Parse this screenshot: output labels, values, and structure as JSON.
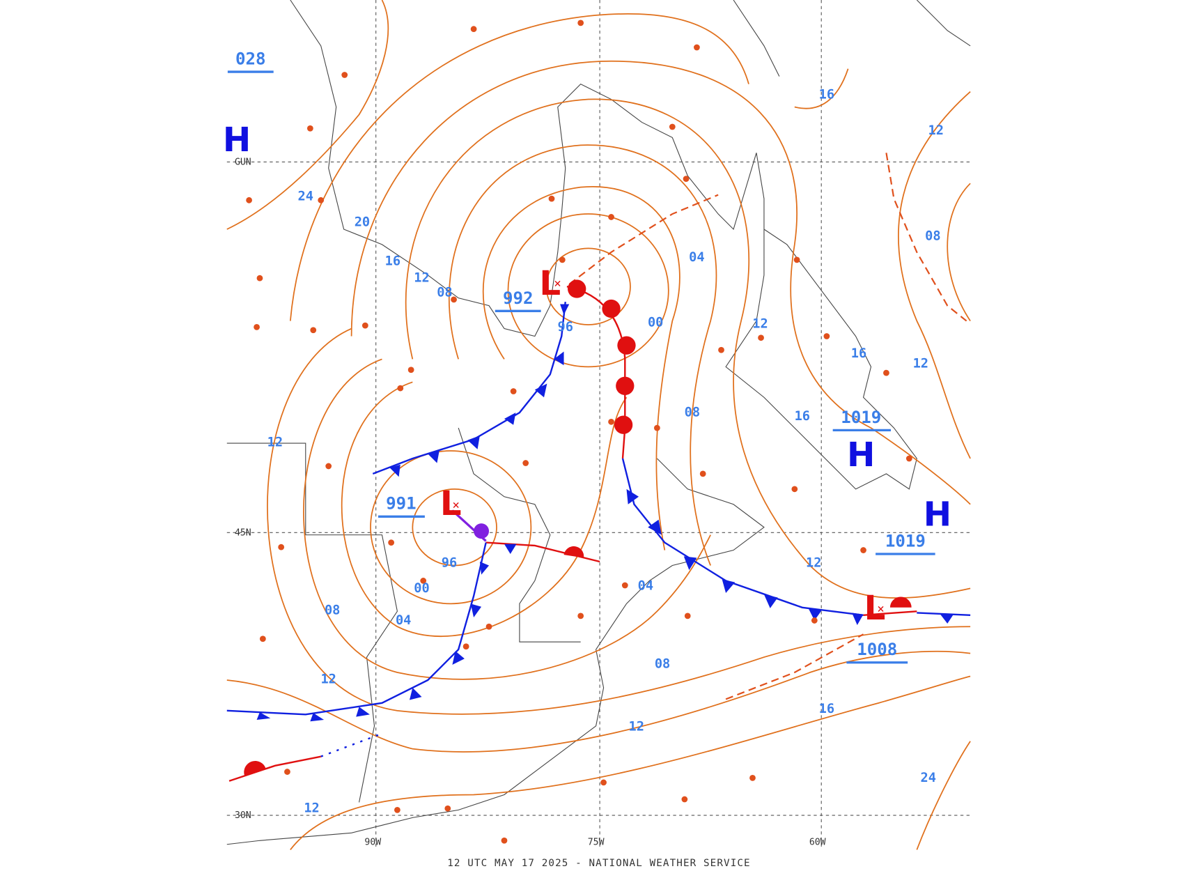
{
  "footer": "12 UTC MAY 17 2025 - NATIONAL WEATHER SERVICE",
  "pressure_centers": [
    {
      "symbol": "H"
    },
    {
      "symbol": "L",
      "value": "992"
    },
    {
      "symbol": "L",
      "value": "991"
    },
    {
      "symbol": "H",
      "value": "1019"
    },
    {
      "symbol": "H",
      "value": "1019"
    },
    {
      "symbol": "L",
      "value": "1008"
    }
  ],
  "top_left_label": "028",
  "isobar_labels": [
    "20",
    "24",
    "16",
    "12",
    "08",
    "96",
    "00",
    "04",
    "16",
    "12",
    "08",
    "12",
    "16",
    "12",
    "16",
    "08",
    "12",
    "96",
    "00",
    "04",
    "08",
    "12",
    "04",
    "08",
    "12",
    "12",
    "16",
    "24",
    "12"
  ],
  "grid_labels": [
    "45N",
    "30N",
    "90W",
    "75W",
    "60W",
    "GUN"
  ]
}
